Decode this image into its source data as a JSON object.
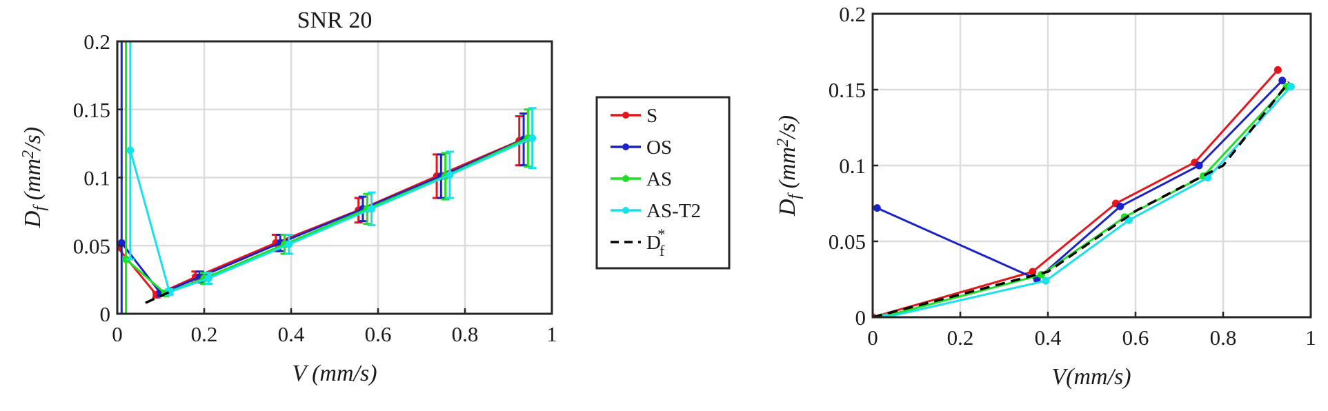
{
  "chart_data": [
    {
      "type": "line",
      "title": "SNR 20",
      "xlabel": "V (mm/s)",
      "ylabel": {
        "main": "D",
        "sub": "f",
        "unit_open": " (mm",
        "sup": "2",
        "unit_close": "/s)"
      },
      "xlim": [
        0,
        1
      ],
      "ylim": [
        0,
        0.2
      ],
      "xticks": [
        "0",
        "0.2",
        "0.4",
        "0.6",
        "0.8",
        "1"
      ],
      "yticks": [
        "0",
        "0.05",
        "0.1",
        "0.15",
        "0.2"
      ],
      "grid": true,
      "series": [
        {
          "name": "S",
          "color": "#e8141b",
          "x": [
            0.0,
            0.09,
            0.18,
            0.365,
            0.555,
            0.735,
            0.925
          ],
          "y": [
            0.049,
            0.014,
            0.027,
            0.052,
            0.076,
            0.101,
            0.127
          ],
          "err": [
            0.151,
            0.002,
            0.004,
            0.006,
            0.009,
            0.016,
            0.018
          ]
        },
        {
          "name": "OS",
          "color": "#1b22c8",
          "x": [
            0.01,
            0.1,
            0.19,
            0.375,
            0.565,
            0.745,
            0.935
          ],
          "y": [
            0.052,
            0.015,
            0.027,
            0.052,
            0.077,
            0.101,
            0.128
          ],
          "err": [
            0.148,
            0.002,
            0.004,
            0.006,
            0.009,
            0.016,
            0.019
          ]
        },
        {
          "name": "AS",
          "color": "#1fe01f",
          "x": [
            0.02,
            0.11,
            0.2,
            0.385,
            0.575,
            0.755,
            0.945
          ],
          "y": [
            0.04,
            0.015,
            0.026,
            0.051,
            0.077,
            0.101,
            0.129
          ],
          "err": [
            0.16,
            0.002,
            0.004,
            0.007,
            0.011,
            0.017,
            0.021
          ]
        },
        {
          "name": "AS-T2",
          "color": "#17e1ea",
          "x": [
            0.03,
            0.12,
            0.21,
            0.395,
            0.585,
            0.765,
            0.955
          ],
          "y": [
            0.12,
            0.016,
            0.026,
            0.051,
            0.077,
            0.102,
            0.129
          ],
          "err": [
            0.08,
            0.002,
            0.004,
            0.007,
            0.012,
            0.017,
            0.022
          ]
        },
        {
          "name": "Df*",
          "color": "#000000",
          "dashed": true,
          "x": [
            0.065,
            0.12
          ],
          "y": [
            0.008,
            0.016
          ]
        }
      ]
    },
    {
      "type": "line",
      "title": "",
      "xlabel": "V(mm/s)",
      "ylabel": {
        "main": "D",
        "sub": "f",
        "unit_open": " (mm",
        "sup": "2",
        "unit_close": "/s)"
      },
      "xlim": [
        0,
        1
      ],
      "ylim": [
        0,
        0.2
      ],
      "xticks": [
        "0",
        "0.2",
        "0.4",
        "0.6",
        "0.8",
        "1"
      ],
      "yticks": [
        "0",
        "0.05",
        "0.1",
        "0.15",
        "0.2"
      ],
      "grid": true,
      "series": [
        {
          "name": "S",
          "color": "#e8141b",
          "x": [
            0.0,
            0.365,
            0.555,
            0.735,
            0.925
          ],
          "y": [
            0.0,
            0.03,
            0.075,
            0.102,
            0.163
          ]
        },
        {
          "name": "OS",
          "color": "#1b22c8",
          "x": [
            0.01,
            0.375,
            0.565,
            0.745,
            0.935
          ],
          "y": [
            0.072,
            0.025,
            0.073,
            0.1,
            0.156
          ]
        },
        {
          "name": "AS",
          "color": "#1fe01f",
          "x": [
            0.02,
            0.385,
            0.575,
            0.755,
            0.945
          ],
          "y": [
            0.0,
            0.028,
            0.066,
            0.093,
            0.152
          ]
        },
        {
          "name": "AS-T2",
          "color": "#17e1ea",
          "x": [
            0.03,
            0.395,
            0.585,
            0.765,
            0.955
          ],
          "y": [
            0.0,
            0.024,
            0.064,
            0.092,
            0.152
          ]
        },
        {
          "name": "Df*",
          "color": "#000000",
          "dashed": true,
          "x": [
            0.0,
            0.4,
            0.6,
            0.8,
            0.95
          ],
          "y": [
            0.0,
            0.03,
            0.07,
            0.1,
            0.155
          ]
        }
      ]
    }
  ],
  "legend": {
    "items": [
      {
        "label": "S",
        "color": "#e8141b"
      },
      {
        "label": "OS",
        "color": "#1b22c8"
      },
      {
        "label": "AS",
        "color": "#1fe01f"
      },
      {
        "label": "AS-T2",
        "color": "#17e1ea"
      },
      {
        "label": "D",
        "sub": "f",
        "sup": "*",
        "color": "#000000",
        "dashed": true
      }
    ]
  }
}
